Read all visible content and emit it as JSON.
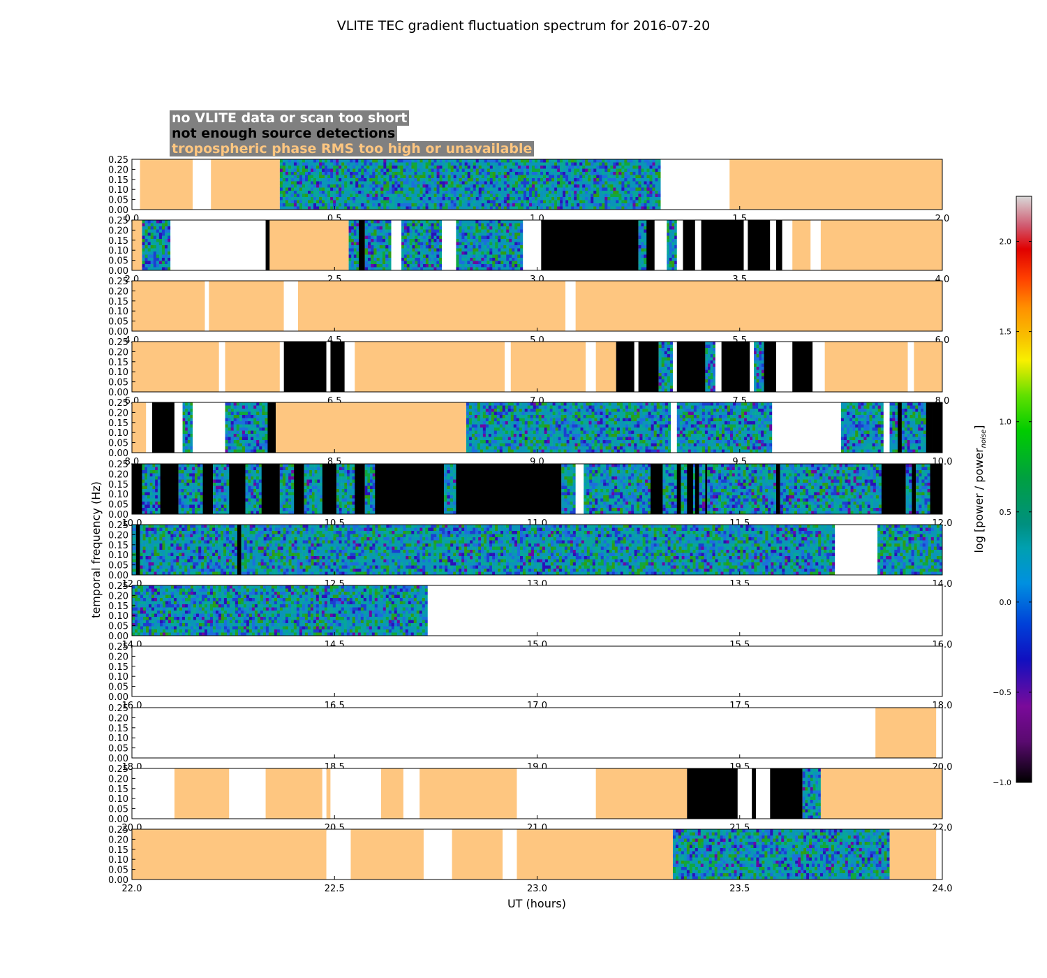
{
  "colors": {
    "no_data": "#ffffff",
    "few_sources": "#000000",
    "tropo": "#fec680",
    "legend_bg": "#808080"
  },
  "chart_data": {
    "type": "heatmap",
    "title": "VLITE TEC gradient fluctuation spectrum for 2016-07-20",
    "xlabel": "UT (hours)",
    "ylabel": "temporal frequency (Hz)",
    "ylim": [
      0,
      0.25
    ],
    "ytick_labels": [
      "0.00",
      "0.05",
      "0.10",
      "0.15",
      "0.20",
      "0.25"
    ],
    "legend": [
      {
        "label": "no VLITE data or scan too short",
        "text_color": "white"
      },
      {
        "label": "not enough source detections",
        "text_color": "black"
      },
      {
        "label": "tropospheric phase RMS too high or unavailable",
        "text_color": "orange"
      }
    ],
    "colorbar": {
      "label": "log [power / power",
      "label_sub": "noise",
      "label_end": "]",
      "range": [
        -1.0,
        2.25
      ],
      "tick_values": [
        -1.0,
        -0.5,
        0.0,
        0.5,
        1.0,
        1.5,
        2.0
      ],
      "tick_labels": [
        "−1.0",
        "−0.5",
        "0.0",
        "0.5",
        "1.0",
        "1.5",
        "2.0"
      ]
    },
    "panels": [
      {
        "xlim": [
          0,
          2
        ],
        "xticks": [
          "0.0",
          "0.5",
          "1.0",
          "1.5",
          "2.0"
        ],
        "segments": [
          [
            0,
            0.02,
            "w"
          ],
          [
            0.02,
            0.15,
            "t"
          ],
          [
            0.15,
            0.195,
            "w"
          ],
          [
            0.195,
            0.365,
            "t"
          ],
          [
            0.365,
            1.305,
            "s"
          ],
          [
            1.305,
            1.475,
            "w"
          ],
          [
            1.475,
            2.0,
            "t"
          ]
        ]
      },
      {
        "xlim": [
          2,
          4
        ],
        "xticks": [
          "2.0",
          "2.5",
          "3.0",
          "3.5",
          "4.0"
        ],
        "segments": [
          [
            2.0,
            2.025,
            "t"
          ],
          [
            2.025,
            2.095,
            "s"
          ],
          [
            2.095,
            2.33,
            "w"
          ],
          [
            2.33,
            2.34,
            "k"
          ],
          [
            2.34,
            2.535,
            "t"
          ],
          [
            2.535,
            2.56,
            "s"
          ],
          [
            2.56,
            2.575,
            "k"
          ],
          [
            2.575,
            2.64,
            "s"
          ],
          [
            2.64,
            2.665,
            "w"
          ],
          [
            2.665,
            2.765,
            "s"
          ],
          [
            2.765,
            2.8,
            "w"
          ],
          [
            2.8,
            2.965,
            "s"
          ],
          [
            2.965,
            3.01,
            "w"
          ],
          [
            3.01,
            3.25,
            "k"
          ],
          [
            3.25,
            3.27,
            "s"
          ],
          [
            3.27,
            3.29,
            "k"
          ],
          [
            3.29,
            3.32,
            "w"
          ],
          [
            3.32,
            3.345,
            "s"
          ],
          [
            3.345,
            3.36,
            "w"
          ],
          [
            3.36,
            3.39,
            "k"
          ],
          [
            3.39,
            3.405,
            "w"
          ],
          [
            3.405,
            3.51,
            "k"
          ],
          [
            3.51,
            3.52,
            "w"
          ],
          [
            3.52,
            3.575,
            "k"
          ],
          [
            3.575,
            3.59,
            "w"
          ],
          [
            3.59,
            3.605,
            "k"
          ],
          [
            3.605,
            3.63,
            "w"
          ],
          [
            3.63,
            3.675,
            "t"
          ],
          [
            3.675,
            3.7,
            "w"
          ],
          [
            3.7,
            4.0,
            "t"
          ]
        ]
      },
      {
        "xlim": [
          4,
          6
        ],
        "xticks": [
          "4.0",
          "4.5",
          "5.0",
          "5.5",
          "6.0"
        ],
        "segments": [
          [
            4.0,
            4.18,
            "t"
          ],
          [
            4.18,
            4.19,
            "w"
          ],
          [
            4.19,
            4.375,
            "t"
          ],
          [
            4.375,
            4.41,
            "w"
          ],
          [
            4.41,
            5.07,
            "t"
          ],
          [
            5.07,
            5.095,
            "w"
          ],
          [
            5.095,
            6.0,
            "t"
          ]
        ]
      },
      {
        "xlim": [
          6,
          8
        ],
        "xticks": [
          "6.0",
          "6.5",
          "7.0",
          "7.5",
          "8.0"
        ],
        "segments": [
          [
            6.0,
            6.215,
            "t"
          ],
          [
            6.215,
            6.23,
            "w"
          ],
          [
            6.23,
            6.365,
            "t"
          ],
          [
            6.365,
            6.375,
            "w"
          ],
          [
            6.375,
            6.48,
            "k"
          ],
          [
            6.48,
            6.49,
            "w"
          ],
          [
            6.49,
            6.525,
            "k"
          ],
          [
            6.525,
            6.55,
            "w"
          ],
          [
            6.55,
            6.92,
            "t"
          ],
          [
            6.92,
            6.935,
            "w"
          ],
          [
            6.935,
            7.12,
            "t"
          ],
          [
            7.12,
            7.145,
            "w"
          ],
          [
            7.145,
            7.195,
            "t"
          ],
          [
            7.195,
            7.24,
            "k"
          ],
          [
            7.24,
            7.25,
            "w"
          ],
          [
            7.25,
            7.3,
            "k"
          ],
          [
            7.3,
            7.335,
            "s"
          ],
          [
            7.335,
            7.345,
            "w"
          ],
          [
            7.345,
            7.415,
            "k"
          ],
          [
            7.415,
            7.44,
            "s"
          ],
          [
            7.44,
            7.455,
            "w"
          ],
          [
            7.455,
            7.525,
            "k"
          ],
          [
            7.525,
            7.535,
            "w"
          ],
          [
            7.535,
            7.56,
            "s"
          ],
          [
            7.56,
            7.59,
            "k"
          ],
          [
            7.59,
            7.63,
            "w"
          ],
          [
            7.63,
            7.68,
            "k"
          ],
          [
            7.68,
            7.71,
            "w"
          ],
          [
            7.71,
            7.915,
            "t"
          ],
          [
            7.915,
            7.93,
            "w"
          ],
          [
            7.93,
            8.0,
            "t"
          ]
        ]
      },
      {
        "xlim": [
          8,
          10
        ],
        "xticks": [
          "8.0",
          "8.5",
          "9.0",
          "9.5",
          "10.0"
        ],
        "segments": [
          [
            8.0,
            8.035,
            "t"
          ],
          [
            8.035,
            8.05,
            "w"
          ],
          [
            8.05,
            8.105,
            "k"
          ],
          [
            8.105,
            8.125,
            "w"
          ],
          [
            8.125,
            8.15,
            "s"
          ],
          [
            8.15,
            8.23,
            "w"
          ],
          [
            8.23,
            8.335,
            "s"
          ],
          [
            8.335,
            8.355,
            "k"
          ],
          [
            8.355,
            8.825,
            "t"
          ],
          [
            8.825,
            9.155,
            "s"
          ],
          [
            9.155,
            9.33,
            "s"
          ],
          [
            9.33,
            9.345,
            "w"
          ],
          [
            9.345,
            9.58,
            "s"
          ],
          [
            9.58,
            9.75,
            "w"
          ],
          [
            9.75,
            9.855,
            "s"
          ],
          [
            9.855,
            9.87,
            "w"
          ],
          [
            9.87,
            9.89,
            "s"
          ],
          [
            9.89,
            9.9,
            "k"
          ],
          [
            9.9,
            9.96,
            "s"
          ],
          [
            9.96,
            9.975,
            "k"
          ],
          [
            9.975,
            10.0,
            "k"
          ]
        ]
      },
      {
        "xlim": [
          10,
          12
        ],
        "xticks": [
          "10.0",
          "10.5",
          "11.0",
          "11.5",
          "12.0"
        ],
        "segments": [
          [
            10.0,
            10.025,
            "k"
          ],
          [
            10.025,
            10.07,
            "s"
          ],
          [
            10.07,
            10.115,
            "k"
          ],
          [
            10.115,
            10.175,
            "s"
          ],
          [
            10.175,
            10.2,
            "k"
          ],
          [
            10.2,
            10.24,
            "s"
          ],
          [
            10.24,
            10.28,
            "k"
          ],
          [
            10.28,
            10.32,
            "s"
          ],
          [
            10.32,
            10.365,
            "k"
          ],
          [
            10.365,
            10.4,
            "s"
          ],
          [
            10.4,
            10.425,
            "k"
          ],
          [
            10.425,
            10.47,
            "s"
          ],
          [
            10.47,
            10.505,
            "k"
          ],
          [
            10.505,
            10.55,
            "s"
          ],
          [
            10.55,
            10.575,
            "k"
          ],
          [
            10.575,
            10.6,
            "s"
          ],
          [
            10.6,
            10.77,
            "k"
          ],
          [
            10.77,
            10.8,
            "s"
          ],
          [
            10.8,
            11.06,
            "k"
          ],
          [
            11.06,
            11.095,
            "s"
          ],
          [
            11.095,
            11.115,
            "w"
          ],
          [
            11.115,
            11.28,
            "s"
          ],
          [
            11.28,
            11.31,
            "k"
          ],
          [
            11.31,
            11.345,
            "s"
          ],
          [
            11.345,
            11.355,
            "k"
          ],
          [
            11.355,
            11.37,
            "s"
          ],
          [
            11.37,
            11.385,
            "k"
          ],
          [
            11.385,
            11.39,
            "s"
          ],
          [
            11.39,
            11.4,
            "k"
          ],
          [
            11.4,
            11.415,
            "s"
          ],
          [
            11.415,
            11.42,
            "k"
          ],
          [
            11.42,
            11.59,
            "s"
          ],
          [
            11.59,
            11.6,
            "k"
          ],
          [
            11.6,
            11.85,
            "s"
          ],
          [
            11.85,
            11.91,
            "k"
          ],
          [
            11.91,
            11.925,
            "s"
          ],
          [
            11.925,
            11.935,
            "k"
          ],
          [
            11.935,
            11.97,
            "s"
          ],
          [
            11.97,
            12.0,
            "k"
          ]
        ]
      },
      {
        "xlim": [
          12,
          14
        ],
        "xticks": [
          "12.0",
          "12.5",
          "13.0",
          "13.5",
          "14.0"
        ],
        "segments": [
          [
            12.0,
            12.01,
            "s"
          ],
          [
            12.01,
            12.02,
            "k"
          ],
          [
            12.02,
            12.26,
            "s"
          ],
          [
            12.26,
            12.27,
            "k"
          ],
          [
            12.27,
            13.735,
            "s"
          ],
          [
            13.735,
            13.84,
            "w"
          ],
          [
            13.84,
            14.0,
            "s"
          ]
        ]
      },
      {
        "xlim": [
          14,
          16
        ],
        "xticks": [
          "14.0",
          "14.5",
          "15.0",
          "15.5",
          "16.0"
        ],
        "segments": [
          [
            14.0,
            14.73,
            "s"
          ],
          [
            14.73,
            16.0,
            "w"
          ]
        ]
      },
      {
        "xlim": [
          16,
          18
        ],
        "xticks": [
          "16.0",
          "16.5",
          "17.0",
          "17.5",
          "18.0"
        ],
        "segments": [
          [
            16.0,
            18.0,
            "w"
          ]
        ]
      },
      {
        "xlim": [
          18,
          20
        ],
        "xticks": [
          "18.0",
          "18.5",
          "19.0",
          "19.5",
          "20.0"
        ],
        "segments": [
          [
            18.0,
            19.835,
            "w"
          ],
          [
            19.835,
            19.985,
            "t"
          ],
          [
            19.985,
            20.0,
            "w"
          ]
        ]
      },
      {
        "xlim": [
          20,
          22
        ],
        "xticks": [
          "20.0",
          "20.5",
          "21.0",
          "21.5",
          "22.0"
        ],
        "segments": [
          [
            20.0,
            20.105,
            "w"
          ],
          [
            20.105,
            20.24,
            "t"
          ],
          [
            20.24,
            20.33,
            "w"
          ],
          [
            20.33,
            20.47,
            "t"
          ],
          [
            20.47,
            20.48,
            "w"
          ],
          [
            20.48,
            20.49,
            "t"
          ],
          [
            20.49,
            20.615,
            "w"
          ],
          [
            20.615,
            20.67,
            "t"
          ],
          [
            20.67,
            20.71,
            "w"
          ],
          [
            20.71,
            20.95,
            "t"
          ],
          [
            20.95,
            21.145,
            "w"
          ],
          [
            21.145,
            21.37,
            "t"
          ],
          [
            21.37,
            21.495,
            "k"
          ],
          [
            21.495,
            21.53,
            "w"
          ],
          [
            21.53,
            21.54,
            "k"
          ],
          [
            21.54,
            21.575,
            "w"
          ],
          [
            21.575,
            21.655,
            "k"
          ],
          [
            21.655,
            21.7,
            "s"
          ],
          [
            21.7,
            22.0,
            "t"
          ]
        ]
      },
      {
        "xlim": [
          22,
          24
        ],
        "xticks": [
          "22.0",
          "22.5",
          "23.0",
          "23.5",
          "24.0"
        ],
        "segments": [
          [
            22.0,
            22.48,
            "t"
          ],
          [
            22.48,
            22.54,
            "w"
          ],
          [
            22.54,
            22.72,
            "t"
          ],
          [
            22.72,
            22.79,
            "w"
          ],
          [
            22.79,
            22.915,
            "t"
          ],
          [
            22.915,
            22.95,
            "w"
          ],
          [
            22.95,
            23.335,
            "t"
          ],
          [
            23.335,
            23.87,
            "s"
          ],
          [
            23.87,
            23.985,
            "t"
          ],
          [
            23.985,
            24.0,
            "w"
          ]
        ]
      }
    ]
  }
}
